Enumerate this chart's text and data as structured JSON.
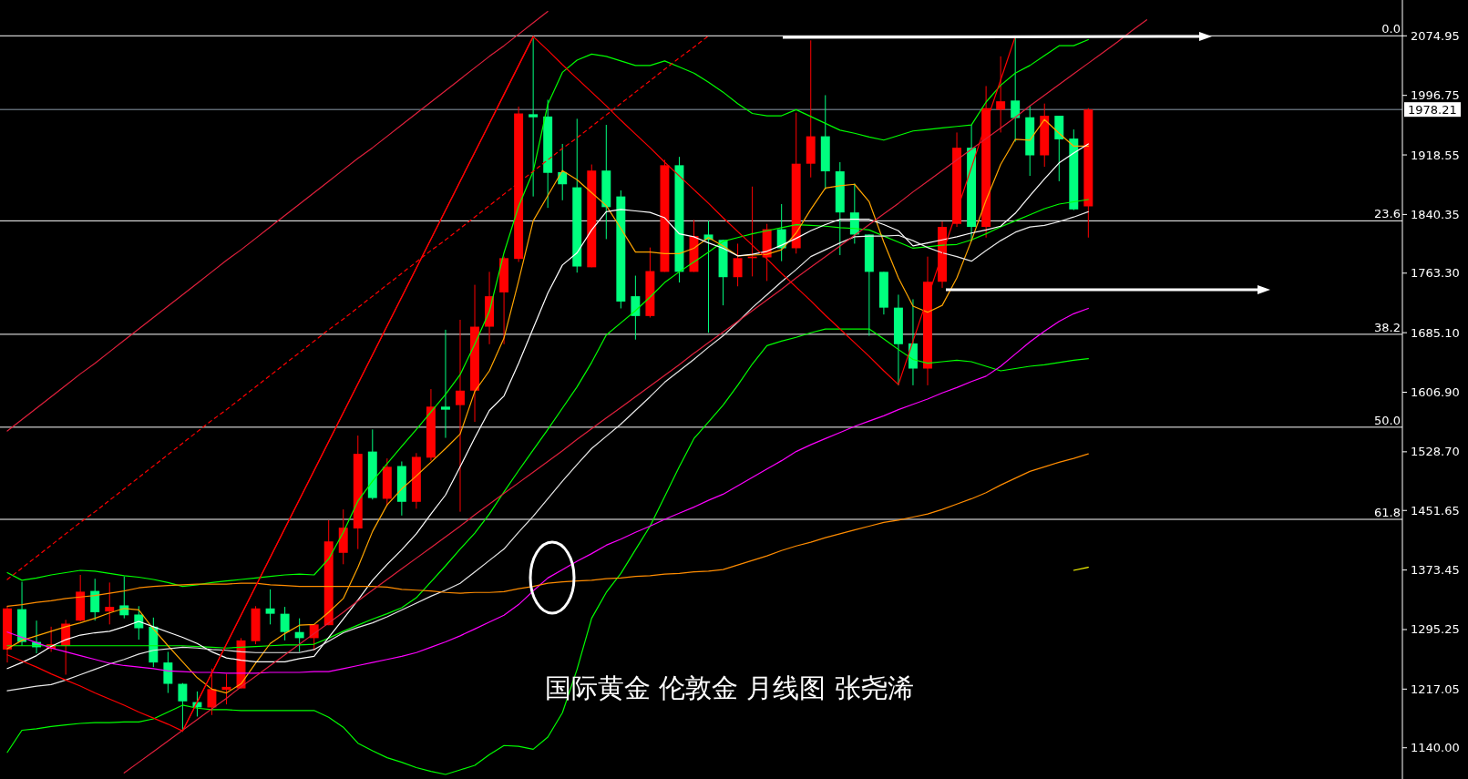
{
  "chart_data": {
    "type": "candlestick",
    "categories": [
      null,
      null,
      null,
      null,
      null,
      null,
      null,
      null,
      null,
      null,
      null,
      null,
      null,
      null,
      null,
      null,
      null,
      null,
      null,
      null,
      null,
      null,
      null,
      null,
      null,
      null,
      null,
      null,
      null,
      null,
      null,
      null,
      null,
      null,
      null,
      null,
      null,
      null,
      null,
      null,
      null,
      null,
      null,
      null,
      null,
      null,
      null,
      null,
      null,
      null,
      null,
      null,
      null,
      null,
      null,
      null,
      null,
      null,
      null,
      null,
      null,
      null,
      null,
      null,
      null,
      null,
      null,
      null,
      null,
      null,
      null,
      null,
      null,
      null,
      null,
      null,
      null,
      null,
      null,
      null,
      null,
      null,
      null,
      null,
      null,
      null,
      null,
      null,
      null,
      null,
      null,
      null,
      null,
      null,
      null,
      null
    ],
    "ylim": [
      1099,
      2122
    ],
    "yticks": [
      2074.95,
      1996.75,
      1918.55,
      1840.35,
      {
        "value": 1763.3,
        "label": "1763.30"
      },
      {
        "value": 1685.1,
        "label": "1685.10"
      },
      {
        "value": 1606.9,
        "label": "1606.90"
      },
      {
        "value": 1528.7,
        "label": "1528.70"
      },
      1451.65,
      1373.45,
      1295.25,
      1217.05,
      {
        "value": 1140,
        "label": "1140.00"
      }
    ],
    "tick_labels": "y",
    "ohlc": [
      [
        1269,
        1326,
        1252,
        1323
      ],
      [
        1322,
        1358,
        1274,
        1279
      ],
      [
        1279,
        1307,
        1264,
        1272
      ],
      [
        1270,
        1299,
        1266,
        1276
      ],
      [
        1274,
        1308,
        1236,
        1303
      ],
      [
        1307,
        1367,
        1306,
        1345
      ],
      [
        1346,
        1362,
        1307,
        1318
      ],
      [
        1319,
        1357,
        1302,
        1325
      ],
      [
        1327,
        1365,
        1310,
        1314
      ],
      [
        1315,
        1326,
        1282,
        1297
      ],
      [
        1299,
        1311,
        1246,
        1252
      ],
      [
        1252,
        1266,
        1212,
        1224
      ],
      [
        1224,
        1225,
        1161,
        1201
      ],
      [
        1200,
        1214,
        1181,
        1193
      ],
      [
        1193,
        1244,
        1183,
        1217
      ],
      [
        1216,
        1237,
        1197,
        1220
      ],
      [
        1218,
        1284,
        1218,
        1281
      ],
      [
        1280,
        1326,
        1276,
        1323
      ],
      [
        1323,
        1348,
        1302,
        1316
      ],
      [
        1316,
        1325,
        1281,
        1292
      ],
      [
        1292,
        1310,
        1266,
        1284
      ],
      [
        1284,
        1302,
        1268,
        1302
      ],
      [
        1301,
        1439,
        1301,
        1411
      ],
      [
        1396,
        1453,
        1381,
        1429
      ],
      [
        1428,
        1550,
        1401,
        1526
      ],
      [
        1529,
        1558,
        1466,
        1468
      ],
      [
        1467,
        1520,
        1458,
        1509
      ],
      [
        1510,
        1516,
        1445,
        1463
      ],
      [
        1463,
        1527,
        1454,
        1522
      ],
      [
        1521,
        1611,
        1517,
        1588
      ],
      [
        1588,
        1689,
        1547,
        1584
      ],
      [
        1590,
        1702,
        1450,
        1609
      ],
      [
        1609,
        1748,
        1568,
        1693
      ],
      [
        1693,
        1765,
        1670,
        1733
      ],
      [
        1738,
        1785,
        1670,
        1783
      ],
      [
        1782,
        1982,
        1778,
        1973
      ],
      [
        1972,
        2072,
        1864,
        1968
      ],
      [
        1969,
        1991,
        1849,
        1895
      ],
      [
        1896,
        1933,
        1859,
        1880
      ],
      [
        1876,
        1966,
        1764,
        1772
      ],
      [
        1771,
        1906,
        1771,
        1898
      ],
      [
        1898,
        1958,
        1808,
        1850
      ],
      [
        1864,
        1872,
        1717,
        1726
      ],
      [
        1733,
        1760,
        1676,
        1707
      ],
      [
        1707,
        1797,
        1705,
        1766
      ],
      [
        1765,
        1912,
        1765,
        1905
      ],
      [
        1905,
        1916,
        1751,
        1765
      ],
      [
        1765,
        1833,
        1765,
        1812
      ],
      [
        1814,
        1832,
        1685,
        1807
      ],
      [
        1807,
        1807,
        1721,
        1758
      ],
      [
        1758,
        1802,
        1746,
        1783
      ],
      [
        1783,
        1877,
        1759,
        1785
      ],
      [
        1784,
        1828,
        1753,
        1821
      ],
      [
        1821,
        1854,
        1779,
        1796
      ],
      [
        1796,
        1974,
        1789,
        1907
      ],
      [
        1907,
        2069,
        1889,
        1943
      ],
      [
        1943,
        1997,
        1873,
        1897
      ],
      [
        1897,
        1909,
        1787,
        1843
      ],
      [
        1843,
        1881,
        1802,
        1814
      ],
      [
        1814,
        1814,
        1681,
        1765
      ],
      [
        1765,
        1765,
        1709,
        1718
      ],
      [
        1718,
        1735,
        1616,
        1670
      ],
      [
        1671,
        1729,
        1616,
        1638
      ],
      [
        1638,
        1785,
        1616,
        1752
      ],
      [
        1752,
        1831,
        1744,
        1824
      ],
      [
        1828,
        1948,
        1824,
        1928
      ],
      [
        1928,
        1958,
        1805,
        1824
      ],
      [
        1824,
        2009,
        1810,
        1980
      ],
      [
        1978,
        2048,
        1948,
        1989
      ],
      [
        1990,
        2075,
        1936,
        1967
      ],
      [
        1968,
        1983,
        1891,
        1918
      ],
      [
        1918,
        1986,
        1903,
        1970
      ],
      [
        1970,
        1970,
        1884,
        1939
      ],
      [
        1940,
        1952,
        1846,
        1847
      ],
      [
        1851,
        1980,
        1810,
        1978.21
      ],
      null,
      null,
      null,
      null,
      null,
      null,
      null,
      null,
      null,
      null,
      null,
      null,
      null,
      null,
      null,
      null,
      null,
      null,
      null,
      null,
      null
    ],
    "colors": [
      "#ff0000",
      "#00ff7f",
      "#00ff7f",
      "#ff0000",
      "#ff0000",
      "#ff0000",
      "#00ff7f",
      "#ff0000",
      "#00ff7f",
      "#00ff7f",
      "#00ff7f",
      "#00ff7f",
      "#00ff7f",
      "#00ff7f",
      "#ff0000",
      "#ff0000",
      "#ff0000",
      "#ff0000",
      "#00ff7f",
      "#00ff7f",
      "#00ff7f",
      "#ff0000",
      "#ff0000",
      "#ff0000",
      "#ff0000",
      "#00ff7f",
      "#ff0000",
      "#00ff7f",
      "#ff0000",
      "#ff0000",
      "#00ff7f",
      "#ff0000",
      "#ff0000",
      "#ff0000",
      "#ff0000",
      "#ff0000",
      "#00ff7f",
      "#00ff7f",
      "#00ff7f",
      "#00ff7f",
      "#ff0000",
      "#00ff7f",
      "#00ff7f",
      "#00ff7f",
      "#ff0000",
      "#ff0000",
      "#00ff7f",
      "#ff0000",
      "#00ff7f",
      "#00ff7f",
      "#ff0000",
      "#ff0000",
      "#ff0000",
      "#00ff7f",
      "#ff0000",
      "#ff0000",
      "#00ff7f",
      "#00ff7f",
      "#00ff7f",
      "#00ff7f",
      "#00ff7f",
      "#00ff7f",
      "#00ff7f",
      "#ff0000",
      "#ff0000",
      "#ff0000",
      "#00ff7f",
      "#ff0000",
      "#ff0000",
      "#00ff7f",
      "#00ff7f",
      "#ff0000",
      "#00ff7f",
      "#00ff7f",
      "#ff0000",
      null,
      null,
      null,
      null,
      null,
      null,
      null,
      null,
      null,
      null,
      null,
      null,
      null,
      null,
      null,
      null,
      null,
      null,
      null,
      null,
      null
    ],
    "series": [
      {
        "type": "line",
        "color": "#00ff00",
        "values": [
          1370,
          1360,
          1363,
          1367,
          1370,
          1373,
          1372,
          1369,
          1366,
          1364,
          1361,
          1357,
          1352,
          1354,
          1357,
          1359,
          1361,
          1363,
          1365,
          1367,
          1368,
          1367,
          1388,
          1423,
          1464,
          1490,
          1513,
          1536,
          1558,
          1581,
          1604,
          1630,
          1670,
          1713,
          1790,
          1851,
          1897,
          1985,
          2027,
          2043,
          2051,
          2048,
          2042,
          2036,
          2036,
          2042,
          2034,
          2026,
          2014,
          2001,
          1986,
          1973,
          1970,
          1970,
          1978,
          1969,
          1960,
          1951,
          1947,
          1942,
          1938,
          1944,
          1950,
          1952,
          1954,
          1956,
          1958,
          1988,
          2010,
          2026,
          2036,
          2049,
          2062,
          2062,
          2070,
          null,
          null,
          null,
          null,
          null,
          null,
          null,
          null,
          null,
          null,
          null,
          null,
          null,
          null,
          null,
          null,
          null,
          null,
          null,
          null,
          null
        ]
      },
      {
        "type": "line",
        "color": "#00ff00",
        "values": [
          1274,
          1274,
          1274,
          1274,
          1274,
          1274,
          1274,
          1274,
          1274,
          1274,
          1274,
          1274,
          1274,
          1273,
          1272,
          1271,
          1272,
          1273,
          1274,
          1275,
          1275,
          1276,
          1284,
          1293,
          1301,
          1309,
          1316,
          1324,
          1337,
          1358,
          1379,
          1401,
          1422,
          1447,
          1476,
          1504,
          1531,
          1558,
          1586,
          1614,
          1646,
          1682,
          1698,
          1714,
          1732,
          1751,
          1765,
          1778,
          1791,
          1805,
          1810,
          1815,
          1819,
          1823,
          1827,
          1826,
          1825,
          1823,
          1822,
          1820,
          1812,
          1804,
          1796,
          1798,
          1800,
          1801,
          1807,
          1815,
          1824,
          1832,
          1840,
          1848,
          1854,
          1857,
          1860,
          null,
          null,
          null,
          null,
          null,
          null,
          null,
          null,
          null,
          null,
          null,
          null,
          null,
          null,
          null,
          null,
          null,
          null,
          null,
          null,
          null
        ]
      },
      {
        "type": "line",
        "color": "#00ff00",
        "values": [
          1134,
          1163,
          1165,
          1168,
          1170,
          1172,
          1173,
          1173,
          1174,
          1174,
          1178,
          1187,
          1196,
          1192,
          1190,
          1190,
          1189,
          1189,
          1189,
          1189,
          1189,
          1189,
          1180,
          1167,
          1146,
          1136,
          1127,
          1121,
          1114,
          1109,
          1105,
          1111,
          1117,
          1131,
          1143,
          1142,
          1138,
          1154,
          1186,
          1243,
          1310,
          1344,
          1369,
          1400,
          1431,
          1470,
          1509,
          1546,
          1568,
          1590,
          1616,
          1644,
          1668,
          1674,
          1679,
          1685,
          1690,
          1690,
          1690,
          1690,
          1677,
          1663,
          1650,
          1645,
          1647,
          1649,
          1647,
          1641,
          1635,
          1638,
          1641,
          1643,
          1646,
          1649,
          1651,
          null,
          null,
          null,
          null,
          null,
          null,
          null,
          null,
          null,
          null,
          null,
          null,
          null,
          null,
          null,
          null,
          null,
          null,
          null,
          null,
          null
        ]
      },
      {
        "type": "line",
        "color": "#ffa500",
        "values": [
          1270,
          1281,
          1287,
          1293,
          1299,
          1304,
          1310,
          1317,
          1323,
          1321,
          1296,
          1274,
          1253,
          1232,
          1217,
          1212,
          1224,
          1251,
          1277,
          1290,
          1301,
          1302,
          1318,
          1336,
          1377,
          1424,
          1459,
          1480,
          1497,
          1515,
          1533,
          1552,
          1608,
          1635,
          1678,
          1753,
          1832,
          1865,
          1898,
          1886,
          1869,
          1852,
          1822,
          1791,
          1791,
          1789,
          1789,
          1796,
          1810,
          1799,
          1786,
          1787,
          1788,
          1794,
          1816,
          1847,
          1875,
          1878,
          1880,
          1857,
          1804,
          1757,
          1720,
          1712,
          1721,
          1757,
          1806,
          1859,
          1906,
          1939,
          1938,
          1965,
          1947,
          1930,
          1930,
          null,
          null,
          null,
          null,
          null,
          null,
          null,
          null,
          null,
          null,
          null,
          null,
          null,
          null,
          null,
          null,
          null,
          null,
          null,
          null,
          null
        ]
      },
      {
        "type": "line",
        "color": "#ffffff",
        "values": [
          1244,
          1252,
          1261,
          1273,
          1282,
          1288,
          1291,
          1293,
          1299,
          1306,
          1299,
          1292,
          1285,
          1277,
          1266,
          1258,
          1255,
          1253,
          1253,
          1253,
          1257,
          1260,
          1285,
          1309,
          1334,
          1360,
          1381,
          1400,
          1421,
          1447,
          1472,
          1509,
          1547,
          1583,
          1602,
          1645,
          1691,
          1737,
          1774,
          1790,
          1820,
          1844,
          1847,
          1845,
          1843,
          1836,
          1815,
          1811,
          1803,
          1796,
          1786,
          1788,
          1792,
          1800,
          1809,
          1819,
          1827,
          1834,
          1834,
          1834,
          1827,
          1819,
          1799,
          1803,
          1807,
          1811,
          1816,
          1820,
          1825,
          1842,
          1865,
          1887,
          1908,
          1921,
          1933,
          null,
          null,
          null,
          null,
          null,
          null,
          null,
          null,
          null,
          null,
          null,
          null,
          null,
          null,
          null,
          null,
          null,
          null,
          null,
          null,
          null
        ]
      },
      {
        "type": "line",
        "color": "#e8e8e8",
        "values": [
          1215,
          1218,
          1221,
          1223,
          1229,
          1236,
          1243,
          1250,
          1256,
          1263,
          1268,
          1270,
          1272,
          1271,
          1269,
          1268,
          1266,
          1265,
          1265,
          1265,
          1265,
          1269,
          1280,
          1291,
          1298,
          1304,
          1312,
          1321,
          1330,
          1339,
          1347,
          1356,
          1371,
          1386,
          1401,
          1423,
          1444,
          1467,
          1490,
          1512,
          1533,
          1549,
          1565,
          1583,
          1601,
          1620,
          1635,
          1650,
          1666,
          1681,
          1699,
          1718,
          1735,
          1752,
          1768,
          1785,
          1794,
          1803,
          1811,
          1812,
          1812,
          1813,
          1806,
          1797,
          1790,
          1785,
          1779,
          1793,
          1806,
          1817,
          1824,
          1826,
          1831,
          1837,
          1844,
          null,
          null,
          null,
          null,
          null,
          null,
          null,
          null,
          null,
          null,
          null,
          null,
          null,
          null,
          null,
          null,
          null,
          null,
          null,
          null,
          null
        ]
      },
      {
        "type": "line",
        "color": "#ff00ff",
        "values": [
          1292,
          1285,
          1278,
          1271,
          1266,
          1261,
          1256,
          1251,
          1248,
          1246,
          1244,
          1241,
          1240,
          1239,
          1239,
          1238,
          1238,
          1238,
          1239,
          1239,
          1239,
          1240,
          1240,
          1244,
          1248,
          1252,
          1256,
          1260,
          1265,
          1272,
          1279,
          1287,
          1296,
          1305,
          1314,
          1328,
          1346,
          1363,
          1374,
          1385,
          1395,
          1406,
          1414,
          1423,
          1431,
          1440,
          1448,
          1456,
          1465,
          1473,
          1484,
          1495,
          1506,
          1517,
          1529,
          1538,
          1546,
          1554,
          1562,
          1569,
          1576,
          1584,
          1591,
          1598,
          1606,
          1613,
          1621,
          1628,
          1641,
          1657,
          1673,
          1687,
          1700,
          1710,
          1717,
          null,
          null,
          null,
          null,
          null,
          null,
          null,
          null,
          null,
          null,
          null,
          null,
          null,
          null,
          null,
          null,
          null,
          null,
          null,
          null,
          null
        ]
      },
      {
        "type": "line",
        "color": "#ff8c00",
        "values": [
          1326,
          1328,
          1331,
          1333,
          1336,
          1338,
          1340,
          1343,
          1346,
          1350,
          1352,
          1353,
          1354,
          1355,
          1355,
          1355,
          1356,
          1356,
          1354,
          1353,
          1352,
          1352,
          1352,
          1352,
          1352,
          1352,
          1351,
          1348,
          1347,
          1346,
          1344,
          1343,
          1344,
          1344,
          1345,
          1349,
          1352,
          1356,
          1358,
          1359,
          1360,
          1362,
          1363,
          1365,
          1366,
          1368,
          1369,
          1371,
          1372,
          1374,
          1380,
          1386,
          1392,
          1399,
          1405,
          1410,
          1416,
          1421,
          1426,
          1431,
          1436,
          1439,
          1443,
          1447,
          1453,
          1460,
          1467,
          1475,
          1485,
          1494,
          1503,
          1509,
          1515,
          1520,
          1526,
          null,
          null,
          null,
          null,
          null,
          null,
          null,
          null,
          null,
          null,
          null,
          null,
          null,
          null,
          null,
          null,
          null,
          null,
          null,
          null,
          null
        ]
      },
      {
        "type": "line",
        "color": "#ffff00",
        "values": [
          null,
          null,
          null,
          null,
          null,
          null,
          null,
          null,
          null,
          null,
          null,
          null,
          null,
          null,
          null,
          null,
          null,
          null,
          null,
          null,
          null,
          null,
          null,
          null,
          null,
          null,
          null,
          null,
          null,
          null,
          null,
          null,
          null,
          null,
          null,
          null,
          null,
          null,
          null,
          null,
          null,
          null,
          null,
          null,
          null,
          null,
          null,
          null,
          null,
          null,
          null,
          null,
          null,
          null,
          null,
          null,
          null,
          null,
          null,
          null,
          null,
          null,
          null,
          null,
          null,
          null,
          null,
          null,
          null,
          null,
          null,
          null,
          null,
          1373,
          1377,
          null,
          null,
          null,
          null,
          null,
          null,
          null,
          null,
          null,
          null,
          null,
          null,
          null,
          null,
          null,
          null,
          null,
          null,
          null,
          null,
          null
        ]
      },
      {
        "type": "line",
        "color": "#e0203c",
        "values": [
          1556,
          1571,
          1586,
          1601,
          1616,
          1631,
          1645,
          1660,
          1675,
          1690,
          1705,
          1720,
          1735,
          1750,
          1765,
          1780,
          1794,
          1809,
          1824,
          1839,
          1854,
          1869,
          1884,
          1899,
          1914,
          1928,
          1943,
          1958,
          1973,
          1988,
          2003,
          2018,
          2033,
          2048,
          2062,
          2077,
          2092,
          2107,
          null,
          null,
          null,
          null,
          null,
          null,
          null,
          null,
          null,
          null,
          null,
          null,
          null,
          null,
          null,
          null,
          null,
          null,
          null,
          null,
          null,
          null,
          null,
          null,
          null,
          null,
          null,
          null,
          null,
          null,
          null,
          null,
          null,
          null,
          null,
          null,
          null,
          null,
          null,
          null,
          null,
          null,
          null,
          null,
          null,
          null,
          null,
          null,
          null,
          null,
          null,
          null,
          null,
          null,
          null,
          null,
          null,
          null
        ]
      },
      {
        "type": "line",
        "color": "#ff0000",
        "line_style": "dashed",
        "values": [
          1361,
          1376,
          1391,
          1406,
          1421,
          1436,
          1450,
          1465,
          1480,
          1495,
          1510,
          1525,
          1540,
          1555,
          1570,
          1584,
          1599,
          1614,
          1629,
          1644,
          1659,
          1674,
          1689,
          1703,
          1718,
          1733,
          1748,
          1763,
          1778,
          1793,
          1807,
          1822,
          1837,
          1852,
          1867,
          1882,
          1897,
          1912,
          1927,
          1941,
          1956,
          1971,
          1986,
          2001,
          2016,
          2031,
          2046,
          2060,
          2075,
          null,
          null,
          null,
          null,
          null,
          null,
          null,
          null,
          null,
          null,
          null,
          null,
          null,
          null,
          null,
          null,
          null,
          null,
          null,
          null,
          null,
          null,
          null,
          null,
          null,
          null,
          null,
          null,
          null,
          null,
          null,
          null,
          null,
          null,
          null,
          null,
          null,
          null,
          null,
          null,
          null,
          null,
          null,
          null,
          null,
          null,
          null
        ]
      },
      {
        "type": "line",
        "color": "#ff0000",
        "values": [
          null,
          null,
          null,
          null,
          null,
          null,
          null,
          null,
          null,
          null,
          null,
          null,
          1162,
          1200,
          1238,
          1276,
          1314,
          1352,
          1390,
          1428,
          1466,
          1504,
          1542,
          1580,
          1618,
          1656,
          1694,
          1732,
          1770,
          1808,
          1846,
          1884,
          1922,
          1960,
          1998,
          2036,
          2074,
          null,
          null,
          null,
          null,
          null,
          null,
          null,
          null,
          null,
          null,
          null,
          null,
          null,
          null,
          null,
          null,
          null,
          null,
          null,
          null,
          null,
          null,
          null,
          null,
          null,
          null,
          null,
          null,
          null,
          null,
          null,
          null,
          null,
          null,
          null,
          null,
          null,
          null,
          null,
          null,
          null,
          null,
          null,
          null,
          null,
          null,
          null,
          null,
          null,
          null,
          null,
          null,
          null,
          null,
          null,
          null,
          null,
          null,
          null
        ]
      },
      {
        "type": "line",
        "color": "#e0203c",
        "values": [
          null,
          null,
          null,
          null,
          null,
          null,
          null,
          null,
          1107,
          1121,
          1135,
          1149,
          1163,
          1177,
          1191,
          1205,
          1220,
          1234,
          1248,
          1262,
          1276,
          1290,
          1304,
          1318,
          1333,
          1347,
          1361,
          1375,
          1389,
          1403,
          1417,
          1431,
          1446,
          1460,
          1474,
          1488,
          1502,
          1516,
          1530,
          1545,
          1559,
          1573,
          1587,
          1601,
          1615,
          1629,
          1643,
          1658,
          1672,
          1686,
          1700,
          1714,
          1728,
          1742,
          1757,
          1771,
          1785,
          1799,
          1813,
          1827,
          1841,
          1855,
          1870,
          1884,
          1898,
          1912,
          1926,
          1940,
          1954,
          1968,
          1983,
          1997,
          2011,
          2025,
          2039,
          2053,
          2067,
          2082,
          2096,
          null,
          null,
          null,
          null,
          null,
          null,
          null,
          null,
          null,
          null,
          null,
          null,
          null,
          null,
          null,
          null,
          null
        ]
      },
      {
        "type": "line",
        "color": "#ff0000",
        "values": [
          1262,
          1254,
          1246,
          1237,
          1229,
          1221,
          1212,
          1204,
          1196,
          1187,
          1179,
          1171,
          1162,
          1200,
          1238,
          1276,
          1314,
          1352,
          1390,
          1428,
          1466,
          1504,
          1542,
          1580,
          1618,
          1656,
          1694,
          1732,
          1770,
          1808,
          1846,
          1884,
          1922,
          1960,
          1998,
          2036,
          2074,
          2056,
          2037,
          2019,
          2001,
          1983,
          1964,
          1946,
          1928,
          1909,
          1891,
          1873,
          1855,
          1836,
          1818,
          1800,
          1782,
          1763,
          1745,
          1727,
          1708,
          1690,
          1672,
          1654,
          1635,
          1617,
          1674,
          1731,
          1788,
          1845,
          1902,
          1960,
          2017,
          2074,
          null,
          null,
          null,
          null,
          null,
          null,
          null,
          null,
          null,
          null,
          null,
          null,
          null,
          null,
          null,
          null,
          null,
          null,
          null,
          null,
          null,
          null,
          null,
          null,
          null,
          null
        ]
      }
    ],
    "line_style": "solid",
    "ref_lines": [
      {
        "axis": "y",
        "value": 2074.95,
        "color": "#ffffff"
      },
      {
        "axis": "y",
        "value": 1978.21,
        "label": "1978.21",
        "color": "#8a9aa8"
      },
      {
        "axis": "y",
        "value": 1832,
        "color": "#ffffff"
      },
      {
        "axis": "y",
        "value": 1683,
        "color": "#ffffff"
      },
      {
        "axis": "y",
        "value": 1561,
        "color": "#ffffff"
      },
      {
        "axis": "y",
        "value": 1440,
        "color": "#ffffff"
      }
    ],
    "annotations": [
      "国际黄金 伦敦金 月线图 张尧浠",
      {
        "text": "0.0",
        "y": 2074.95
      },
      {
        "text": "23.6",
        "y": 1832
      },
      {
        "text": "38.2",
        "y": 1683
      },
      {
        "text": "50.0",
        "y": 1561
      },
      {
        "text": "61.8",
        "y": 1440
      }
    ]
  }
}
